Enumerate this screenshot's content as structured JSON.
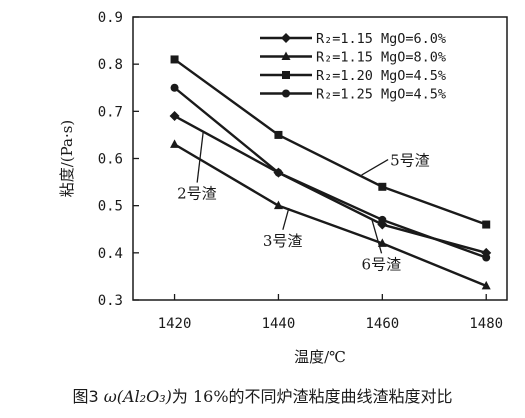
{
  "chart_data": {
    "type": "line",
    "title": "",
    "xlabel": "温度/℃",
    "ylabel": "粘度/(Pa·s)",
    "xlim": [
      1412,
      1484
    ],
    "ylim": [
      0.3,
      0.9
    ],
    "x_ticks": [
      1420,
      1440,
      1460,
      1480
    ],
    "y_ticks": [
      0.3,
      0.4,
      0.5,
      0.6,
      0.7,
      0.8,
      0.9
    ],
    "x": [
      1420,
      1440,
      1460,
      1480
    ],
    "grid": false,
    "legend_position": "top-right",
    "series": [
      {
        "name": "R₂=1.15 MgO=6.0%",
        "marker": "diamond",
        "values": [
          0.69,
          0.57,
          0.46,
          0.4
        ]
      },
      {
        "name": "R₂=1.15 MgO=8.0%",
        "marker": "triangle",
        "values": [
          0.63,
          0.5,
          0.42,
          0.33
        ]
      },
      {
        "name": "R₂=1.20 MgO=4.5%",
        "marker": "square",
        "values": [
          0.81,
          0.65,
          0.54,
          0.46
        ]
      },
      {
        "name": "R₂=1.25 MgO=4.5%",
        "marker": "circle",
        "values": [
          0.75,
          0.57,
          0.47,
          0.39
        ]
      }
    ],
    "annotations": [
      {
        "text": "2号渣",
        "x": 1420.5,
        "y": 0.515,
        "point_x": 1425.5,
        "point_y": 0.655
      },
      {
        "text": "3号渣",
        "x": 1437,
        "y": 0.415,
        "point_x": 1442,
        "point_y": 0.495
      },
      {
        "text": "5号渣",
        "x": 1461.5,
        "y": 0.585,
        "point_x": 1456,
        "point_y": 0.565
      },
      {
        "text": "6号渣",
        "x": 1456,
        "y": 0.365,
        "point_x": 1458,
        "point_y": 0.47
      }
    ]
  },
  "caption": {
    "figure_label": "图3",
    "formula": "ω(Al₂O₃)",
    "text_a": "为",
    "value": "16%",
    "text_b": "的不同炉渣粘度曲线渣粘度对比"
  }
}
